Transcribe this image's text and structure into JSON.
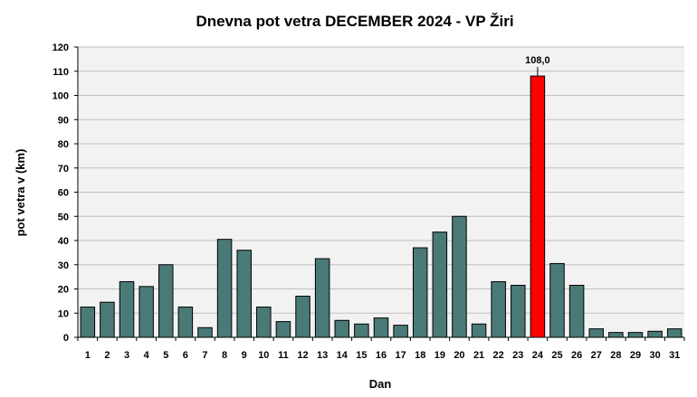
{
  "chart_data": {
    "type": "bar",
    "title": "Dnevna pot vetra DECEMBER 2024 - VP Žiri",
    "xlabel": "Dan",
    "ylabel": "pot vetra  v (km)",
    "categories": [
      "1",
      "2",
      "3",
      "4",
      "5",
      "6",
      "7",
      "8",
      "9",
      "10",
      "11",
      "12",
      "13",
      "14",
      "15",
      "16",
      "17",
      "18",
      "19",
      "20",
      "21",
      "22",
      "23",
      "24",
      "25",
      "26",
      "27",
      "28",
      "29",
      "30",
      "31"
    ],
    "values": [
      12.5,
      14.5,
      23,
      21,
      30,
      12.5,
      4,
      40.5,
      36,
      12.5,
      6.5,
      17,
      32.5,
      7,
      5.5,
      8,
      5,
      37,
      43.5,
      50,
      5.5,
      23,
      21.5,
      108,
      30.5,
      21.5,
      3.5,
      2,
      2,
      2.5,
      3.5
    ],
    "ylim": [
      0,
      120
    ],
    "yticks": [
      0,
      10,
      20,
      30,
      40,
      50,
      60,
      70,
      80,
      90,
      100,
      110,
      120
    ],
    "grid": true,
    "highlight": {
      "category": "24",
      "value": 108,
      "label": "108,0"
    },
    "colors": {
      "bar": "#4a7a78",
      "highlight": "#ff0000",
      "plot_bg": "#f2f2f2",
      "grid": "#bfbfbf",
      "axis": "#000000"
    }
  }
}
